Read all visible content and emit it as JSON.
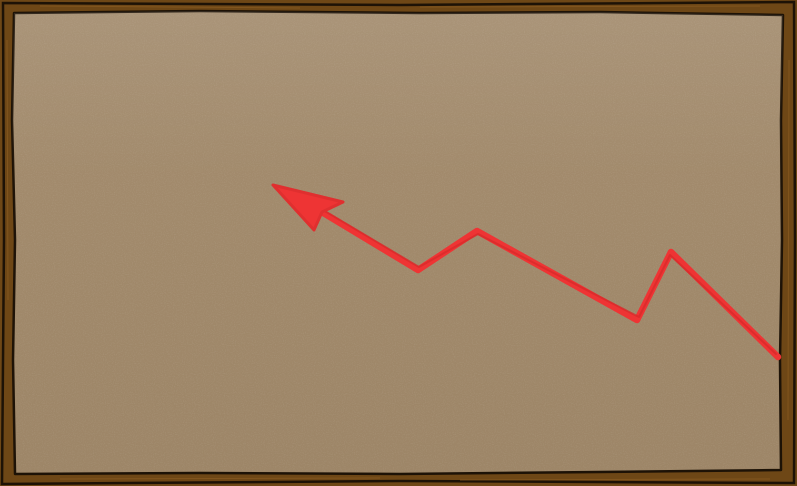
{
  "board": {
    "frame_color": "#6e4716",
    "frame_outline_color": "#1d1206",
    "surface_color": "#a08869",
    "surface_highlight_color": "#c9b79f"
  },
  "arrow": {
    "color": "#ee3434",
    "direction": "upper-left",
    "style": "hand-drawn zigzag"
  }
}
